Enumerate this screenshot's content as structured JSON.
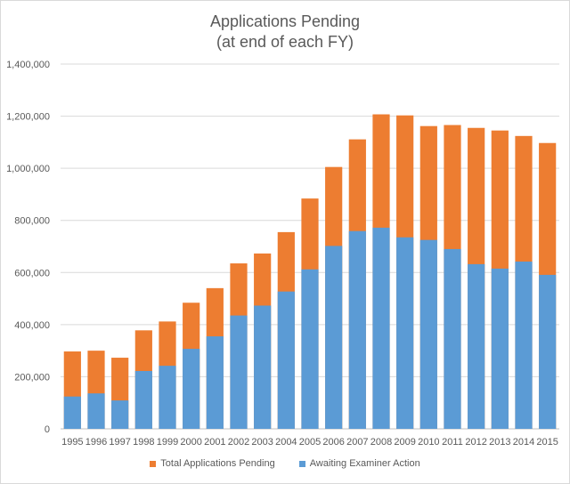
{
  "chart_data": {
    "type": "bar",
    "title": "Applications Pending",
    "subtitle": "(at end of each FY)",
    "xlabel": "",
    "ylabel": "",
    "ylim": [
      0,
      1400000
    ],
    "yticks": [
      0,
      200000,
      400000,
      600000,
      800000,
      1000000,
      1200000,
      1400000
    ],
    "ytick_labels": [
      "0",
      "200,000",
      "400,000",
      "600,000",
      "800,000",
      "1,000,000",
      "1,200,000",
      "1,400,000"
    ],
    "grid": true,
    "legend_position": "bottom",
    "categories": [
      "1995",
      "1996",
      "1997",
      "1998",
      "1999",
      "2000",
      "2001",
      "2002",
      "2003",
      "2004",
      "2005",
      "2006",
      "2007",
      "2008",
      "2009",
      "2010",
      "2011",
      "2012",
      "2013",
      "2014",
      "2015"
    ],
    "series": [
      {
        "name": "Total Applications Pending",
        "color": "#ED7D31",
        "values": [
          297000,
          300000,
          273000,
          378000,
          412000,
          484000,
          540000,
          635000,
          673000,
          755000,
          884000,
          1005000,
          1111000,
          1207000,
          1203000,
          1162000,
          1166000,
          1155000,
          1145000,
          1124000,
          1097000
        ]
      },
      {
        "name": "Awaiting Examiner Action",
        "color": "#5B9BD5",
        "values": [
          124000,
          136000,
          109000,
          222000,
          242000,
          307000,
          355000,
          435000,
          473000,
          527000,
          612000,
          702000,
          759000,
          772000,
          735000,
          725000,
          690000,
          632000,
          615000,
          642000,
          591000
        ]
      }
    ]
  }
}
